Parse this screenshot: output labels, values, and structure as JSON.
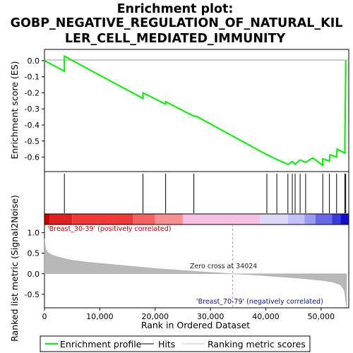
{
  "chart_data": {
    "type": "line",
    "title_lines": [
      "Enrichment plot:",
      "GOBP_NEGATIVE_REGULATION_OF_NATURAL_KIL",
      "LER_CELL_MEDIATED_IMMUNITY"
    ],
    "es_ylabel": "Enrichment score (ES)",
    "metric_ylabel": "Ranked list metric (Signal2Noise)",
    "xlabel": "Rank in Ordered Dataset",
    "xlim": [
      0,
      55000
    ],
    "es_ylim": [
      -0.69,
      0.07
    ],
    "metric_ylim": [
      -0.83,
      1.2
    ],
    "x_ticks": [
      0,
      10000,
      20000,
      30000,
      40000,
      50000
    ],
    "x_tick_labels": [
      "0",
      "10,000",
      "20,000",
      "30,000",
      "40,000",
      "50,000"
    ],
    "es_ticks": [
      0.0,
      -0.1,
      -0.2,
      -0.3,
      -0.4,
      -0.5,
      -0.6
    ],
    "es_tick_labels": [
      "0.0",
      "-0.1",
      "-0.2",
      "-0.3",
      "-0.4",
      "-0.5",
      "-0.6"
    ],
    "metric_ticks": [
      1.0,
      0.5,
      0.0,
      -0.5
    ],
    "metric_tick_labels": [
      "1.0",
      "0.5",
      "0.0",
      "-0.5"
    ],
    "enrichment_profile": {
      "name": "Enrichment profile",
      "color": "#00ee00",
      "x": [
        0,
        3600,
        3601,
        17800,
        17801,
        21900,
        21901,
        27000,
        27400,
        40200,
        42000,
        44000,
        44800,
        45300,
        46200,
        47200,
        48500,
        50300,
        50301,
        51500,
        51600,
        52800,
        52900,
        54300,
        54301,
        54350,
        54400,
        54450
      ],
      "y": [
        0.0,
        -0.065,
        0.028,
        -0.235,
        -0.2,
        -0.27,
        -0.255,
        -0.345,
        -0.345,
        -0.585,
        -0.615,
        -0.645,
        -0.628,
        -0.645,
        -0.618,
        -0.632,
        -0.605,
        -0.652,
        -0.61,
        -0.625,
        -0.585,
        -0.6,
        -0.55,
        -0.575,
        -0.48,
        -0.35,
        -0.2,
        0.0
      ]
    },
    "hits": {
      "name": "Hits",
      "positions": [
        3600,
        17800,
        21900,
        27000,
        40200,
        42000,
        44000,
        44800,
        45300,
        46200,
        47200,
        50300,
        51500,
        52800,
        54300,
        54450
      ]
    },
    "ranking_metric": {
      "name": "Ranking metric scores",
      "x": [
        0,
        200,
        600,
        1500,
        3000,
        5000,
        8000,
        12000,
        16000,
        20000,
        24000,
        28000,
        32000,
        34024,
        38000,
        42000,
        46000,
        50000,
        52000,
        53500,
        54200,
        54600
      ],
      "y": [
        0.85,
        0.62,
        0.52,
        0.45,
        0.39,
        0.33,
        0.28,
        0.23,
        0.18,
        0.13,
        0.09,
        0.05,
        0.02,
        0.0,
        -0.03,
        -0.07,
        -0.11,
        -0.16,
        -0.2,
        -0.27,
        -0.4,
        -0.82
      ]
    },
    "zero_cross_rank": 34024,
    "zero_cross_label": "Zero cross at 34024",
    "positive_label": "'Breast_30-39' (positively correlated)",
    "negative_label": "'Breast_70-79' (negatively correlated)",
    "legend": [
      "Enrichment profile",
      "Hits",
      "Ranking metric scores"
    ],
    "legend_position": "bottom",
    "colorbar_segments": [
      {
        "from": 0,
        "to": 900,
        "color": "#cc0000"
      },
      {
        "from": 900,
        "to": 5000,
        "color": "#e02020"
      },
      {
        "from": 5000,
        "to": 16000,
        "color": "#f03a3a"
      },
      {
        "from": 16000,
        "to": 20000,
        "color": "#f46262"
      },
      {
        "from": 20000,
        "to": 25000,
        "color": "#f79090"
      },
      {
        "from": 25000,
        "to": 39000,
        "color": "#f8c0e0"
      },
      {
        "from": 39000,
        "to": 44000,
        "color": "#dcd8f6"
      },
      {
        "from": 44000,
        "to": 47000,
        "color": "#c2c0f4"
      },
      {
        "from": 47000,
        "to": 49000,
        "color": "#9a9af0"
      },
      {
        "from": 49000,
        "to": 52000,
        "color": "#6868e8"
      },
      {
        "from": 52000,
        "to": 53500,
        "color": "#3c3cdc"
      },
      {
        "from": 53500,
        "to": 55000,
        "color": "#1010c8"
      }
    ]
  }
}
